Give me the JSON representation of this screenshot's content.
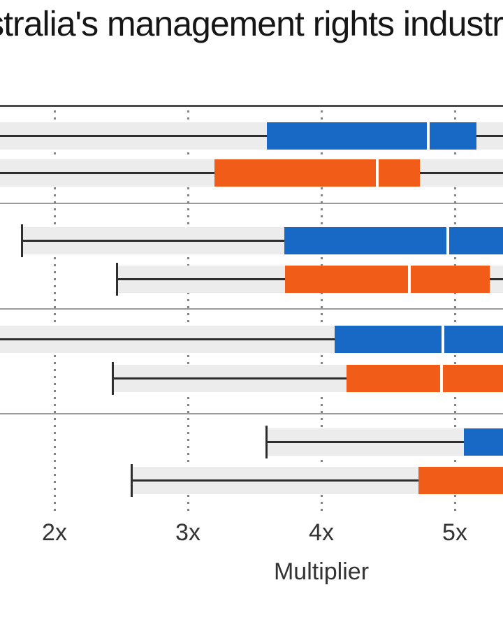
{
  "title": "Australia's management rights industry",
  "colors": {
    "blue_series": "#1769c5",
    "orange_series": "#f25c19",
    "band": "#ececec",
    "whisker": "#2e2e2e"
  },
  "chart_data": {
    "type": "box",
    "orientation": "horizontal",
    "title": "Australia's management rights industry",
    "xlabel": "Multiplier",
    "x_ticks": [
      "2x",
      "3x",
      "4x",
      "5x"
    ],
    "x_tick_values": [
      2,
      3,
      4,
      5
    ],
    "x_visible_range": [
      1.59,
      5.36
    ],
    "grid": "dotted-vertical",
    "legend_position": "none-visible",
    "series_colors": {
      "blue": "#1769c5",
      "orange": "#f25c19"
    },
    "rows": [
      {
        "group": 1,
        "color": "blue",
        "whisker_low": null,
        "q1": 3.59,
        "median": 4.8,
        "q3": 5.16,
        "whisker_high": null
      },
      {
        "group": 1,
        "color": "orange",
        "whisker_low": null,
        "q1": 3.2,
        "median": 4.42,
        "q3": 4.74,
        "whisker_high": null
      },
      {
        "group": 2,
        "color": "blue",
        "whisker_low": 1.75,
        "q1": 3.72,
        "median": 4.95,
        "q3": null,
        "whisker_high": null
      },
      {
        "group": 2,
        "color": "orange",
        "whisker_low": 2.46,
        "q1": 3.73,
        "median": 4.66,
        "q3": 5.26,
        "whisker_high": null
      },
      {
        "group": 3,
        "color": "blue",
        "whisker_low": null,
        "q1": 4.1,
        "median": 4.91,
        "q3": null,
        "whisker_high": null
      },
      {
        "group": 3,
        "color": "orange",
        "whisker_low": 2.43,
        "q1": 4.19,
        "median": 4.9,
        "q3": null,
        "whisker_high": null
      },
      {
        "group": 4,
        "color": "blue",
        "whisker_low": 3.58,
        "q1": 5.07,
        "median": null,
        "q3": null,
        "whisker_high": null
      },
      {
        "group": 4,
        "color": "orange",
        "whisker_low": 2.57,
        "q1": 4.73,
        "median": null,
        "q3": null,
        "whisker_high": null
      }
    ]
  }
}
